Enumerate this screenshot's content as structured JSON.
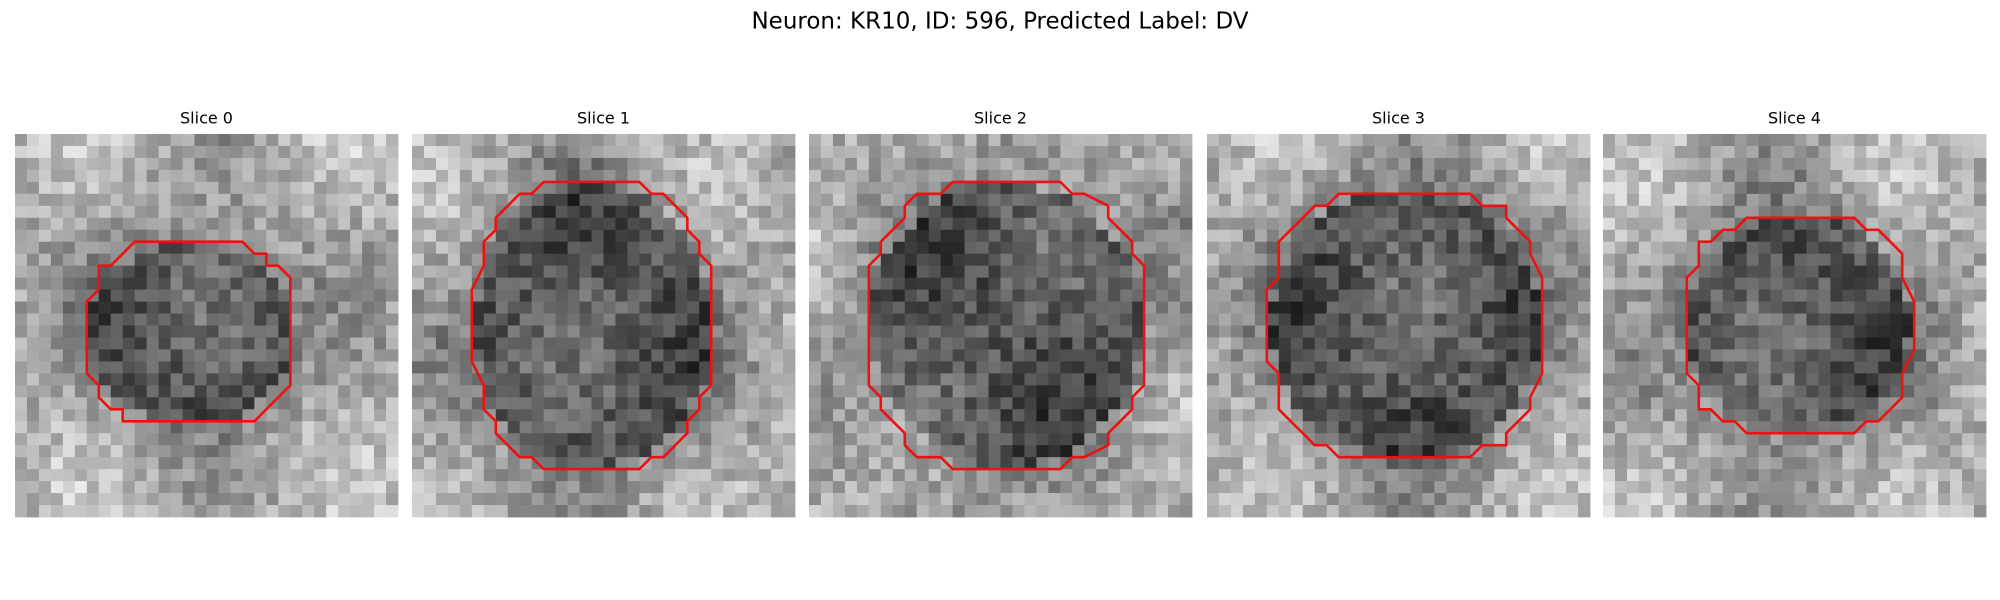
{
  "title": "Neuron: KR10, ID: 596, Predicted Label: DV",
  "panels": [
    {
      "title": "Slice 0"
    },
    {
      "title": "Slice 1"
    },
    {
      "title": "Slice 2"
    },
    {
      "title": "Slice 3"
    },
    {
      "title": "Slice 4"
    }
  ]
}
